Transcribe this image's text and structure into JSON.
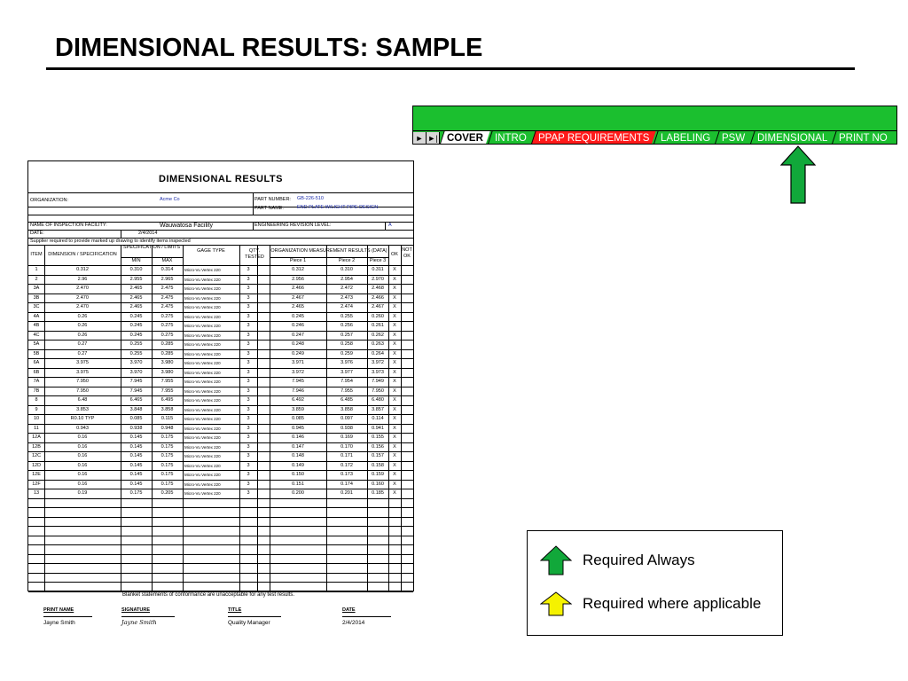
{
  "slide": {
    "title": "DIMENSIONAL RESULTS: SAMPLE"
  },
  "tabs": [
    {
      "label": "COVER",
      "style": "cover"
    },
    {
      "label": "INTRO",
      "style": "green"
    },
    {
      "label": "PPAP REQUIREMENTS",
      "style": "red"
    },
    {
      "label": "LABELING",
      "style": "green"
    },
    {
      "label": "PSW",
      "style": "green"
    },
    {
      "label": "DIMENSIONAL",
      "style": "dim"
    },
    {
      "label": "PRINT NO",
      "style": "green"
    }
  ],
  "legend": {
    "always": {
      "label": "Required Always",
      "color": "#11a83a"
    },
    "applicable": {
      "label": "Required where applicable",
      "color": "#f5f200"
    }
  },
  "sheet": {
    "title": "DIMENSIONAL RESULTS",
    "organization_label": "ORGANIZATION:",
    "organization": "Acme Co",
    "part_number_label": "PART NUMBER:",
    "part_number": "GB-226-510",
    "part_name_label": "PART NAME:",
    "part_name": "END PLATE W/LIGHT PIPE DESIGN",
    "facility_label": "NAME OF INSPECTION FACILITY:",
    "facility": "Wauwatosa Facility",
    "revision_label": "ENGINEERING REVISION LEVEL:",
    "revision": "A",
    "date_label": "DATE:",
    "date": "2/4/2014",
    "note": "Supplier required to provide marked up drawing to identify items inspected",
    "headers": {
      "item": "ITEM",
      "dimension": "DIMENSION / SPECIFICATION",
      "spec_limits": "SPECIFICATION / LIMITS",
      "min": "MIN",
      "max": "MAX",
      "gage": "GAGE TYPE",
      "qty": "QTY. TESTED",
      "results": "ORGANIZATION MEASUREMENT RESULTS (DATA)",
      "p1": "Piece 1",
      "p2": "Piece 2",
      "p3": "Piece 3",
      "ok": "OK",
      "notok": "NOT OK"
    },
    "rows": [
      [
        "1",
        "0.312",
        "0.310",
        "0.314",
        "Micro-Vu Vertex 220",
        "3",
        "0.312",
        "0.310",
        "0.311",
        "X"
      ],
      [
        "2",
        "2.96",
        "2.955",
        "2.965",
        "Micro-Vu Vertex 220",
        "3",
        "2.956",
        "2.954",
        "2.970",
        "X"
      ],
      [
        "3A",
        "2.470",
        "2.465",
        "2.475",
        "Micro-Vu Vertex 220",
        "3",
        "2.466",
        "2.472",
        "2.468",
        "X"
      ],
      [
        "3B",
        "2.470",
        "2.465",
        "2.475",
        "Micro-Vu Vertex 220",
        "3",
        "2.467",
        "2.473",
        "2.466",
        "X"
      ],
      [
        "3C",
        "2.470",
        "2.465",
        "2.475",
        "Micro-Vu Vertex 220",
        "3",
        "2.465",
        "2.474",
        "2.467",
        "X"
      ],
      [
        "4A",
        "0.26",
        "0.245",
        "0.275",
        "Micro-Vu Vertex 220",
        "3",
        "0.245",
        "0.255",
        "0.260",
        "X"
      ],
      [
        "4B",
        "0.26",
        "0.245",
        "0.275",
        "Micro-Vu Vertex 220",
        "3",
        "0.246",
        "0.256",
        "0.261",
        "X"
      ],
      [
        "4C",
        "0.26",
        "0.245",
        "0.275",
        "Micro-Vu Vertex 220",
        "3",
        "0.247",
        "0.257",
        "0.262",
        "X"
      ],
      [
        "5A",
        "0.27",
        "0.255",
        "0.285",
        "Micro-Vu Vertex 220",
        "3",
        "0.248",
        "0.258",
        "0.263",
        "X"
      ],
      [
        "5B",
        "0.27",
        "0.255",
        "0.285",
        "Micro-Vu Vertex 220",
        "3",
        "0.249",
        "0.259",
        "0.264",
        "X"
      ],
      [
        "6A",
        "3.975",
        "3.970",
        "3.980",
        "Micro-Vu Vertex 220",
        "3",
        "3.971",
        "3.976",
        "3.972",
        "X"
      ],
      [
        "6B",
        "3.975",
        "3.970",
        "3.980",
        "Micro-Vu Vertex 220",
        "3",
        "3.972",
        "3.977",
        "3.973",
        "X"
      ],
      [
        "7A",
        "7.950",
        "7.945",
        "7.955",
        "Micro-Vu Vertex 220",
        "3",
        "7.945",
        "7.954",
        "7.949",
        "X"
      ],
      [
        "7B",
        "7.950",
        "7.945",
        "7.955",
        "Micro-Vu Vertex 220",
        "3",
        "7.946",
        "7.955",
        "7.950",
        "X"
      ],
      [
        "8",
        "6.48",
        "6.465",
        "6.495",
        "Micro-Vu Vertex 220",
        "3",
        "6.492",
        "6.485",
        "6.480",
        "X"
      ],
      [
        "9",
        "3.853",
        "3.848",
        "3.858",
        "Micro-Vu Vertex 220",
        "3",
        "3.859",
        "3.858",
        "3.857",
        "X"
      ],
      [
        "10",
        "R0.10 TYP",
        "0.085",
        "0.115",
        "Micro-Vu Vertex 220",
        "3",
        "0.085",
        "0.097",
        "0.114",
        "X"
      ],
      [
        "11",
        "0.943",
        "0.938",
        "0.948",
        "Micro-Vu Vertex 220",
        "3",
        "0.945",
        "0.938",
        "0.941",
        "X"
      ],
      [
        "12A",
        "0.16",
        "0.145",
        "0.175",
        "Micro-Vu Vertex 220",
        "3",
        "0.146",
        "0.169",
        "0.155",
        "X"
      ],
      [
        "12B",
        "0.16",
        "0.145",
        "0.175",
        "Micro-Vu Vertex 220",
        "3",
        "0.147",
        "0.170",
        "0.156",
        "X"
      ],
      [
        "12C",
        "0.16",
        "0.145",
        "0.175",
        "Micro-Vu Vertex 220",
        "3",
        "0.148",
        "0.171",
        "0.157",
        "X"
      ],
      [
        "12D",
        "0.16",
        "0.145",
        "0.175",
        "Micro-Vu Vertex 220",
        "3",
        "0.149",
        "0.172",
        "0.158",
        "X"
      ],
      [
        "12E",
        "0.16",
        "0.145",
        "0.175",
        "Micro-Vu Vertex 220",
        "3",
        "0.150",
        "0.173",
        "0.159",
        "X"
      ],
      [
        "12F",
        "0.16",
        "0.145",
        "0.175",
        "Micro-Vu Vertex 220",
        "3",
        "0.151",
        "0.174",
        "0.160",
        "X"
      ],
      [
        "13",
        "0.19",
        "0.175",
        "0.205",
        "Micro-Vu Vertex 220",
        "3",
        "0.200",
        "0.201",
        "0.185",
        "X"
      ]
    ],
    "blanket": "Blanket statements of conformance are unacceptable for any test results.",
    "sig_print_label": "PRINT NAME",
    "sig_signature_label": "SIGNATURE",
    "sig_title_label": "TITLE",
    "sig_date_label": "DATE",
    "sig_name": "Jayne Smith",
    "sig_signature": "Jayne Smith",
    "sig_title": "Quality Manager",
    "sig_date": "2/4/2014"
  }
}
